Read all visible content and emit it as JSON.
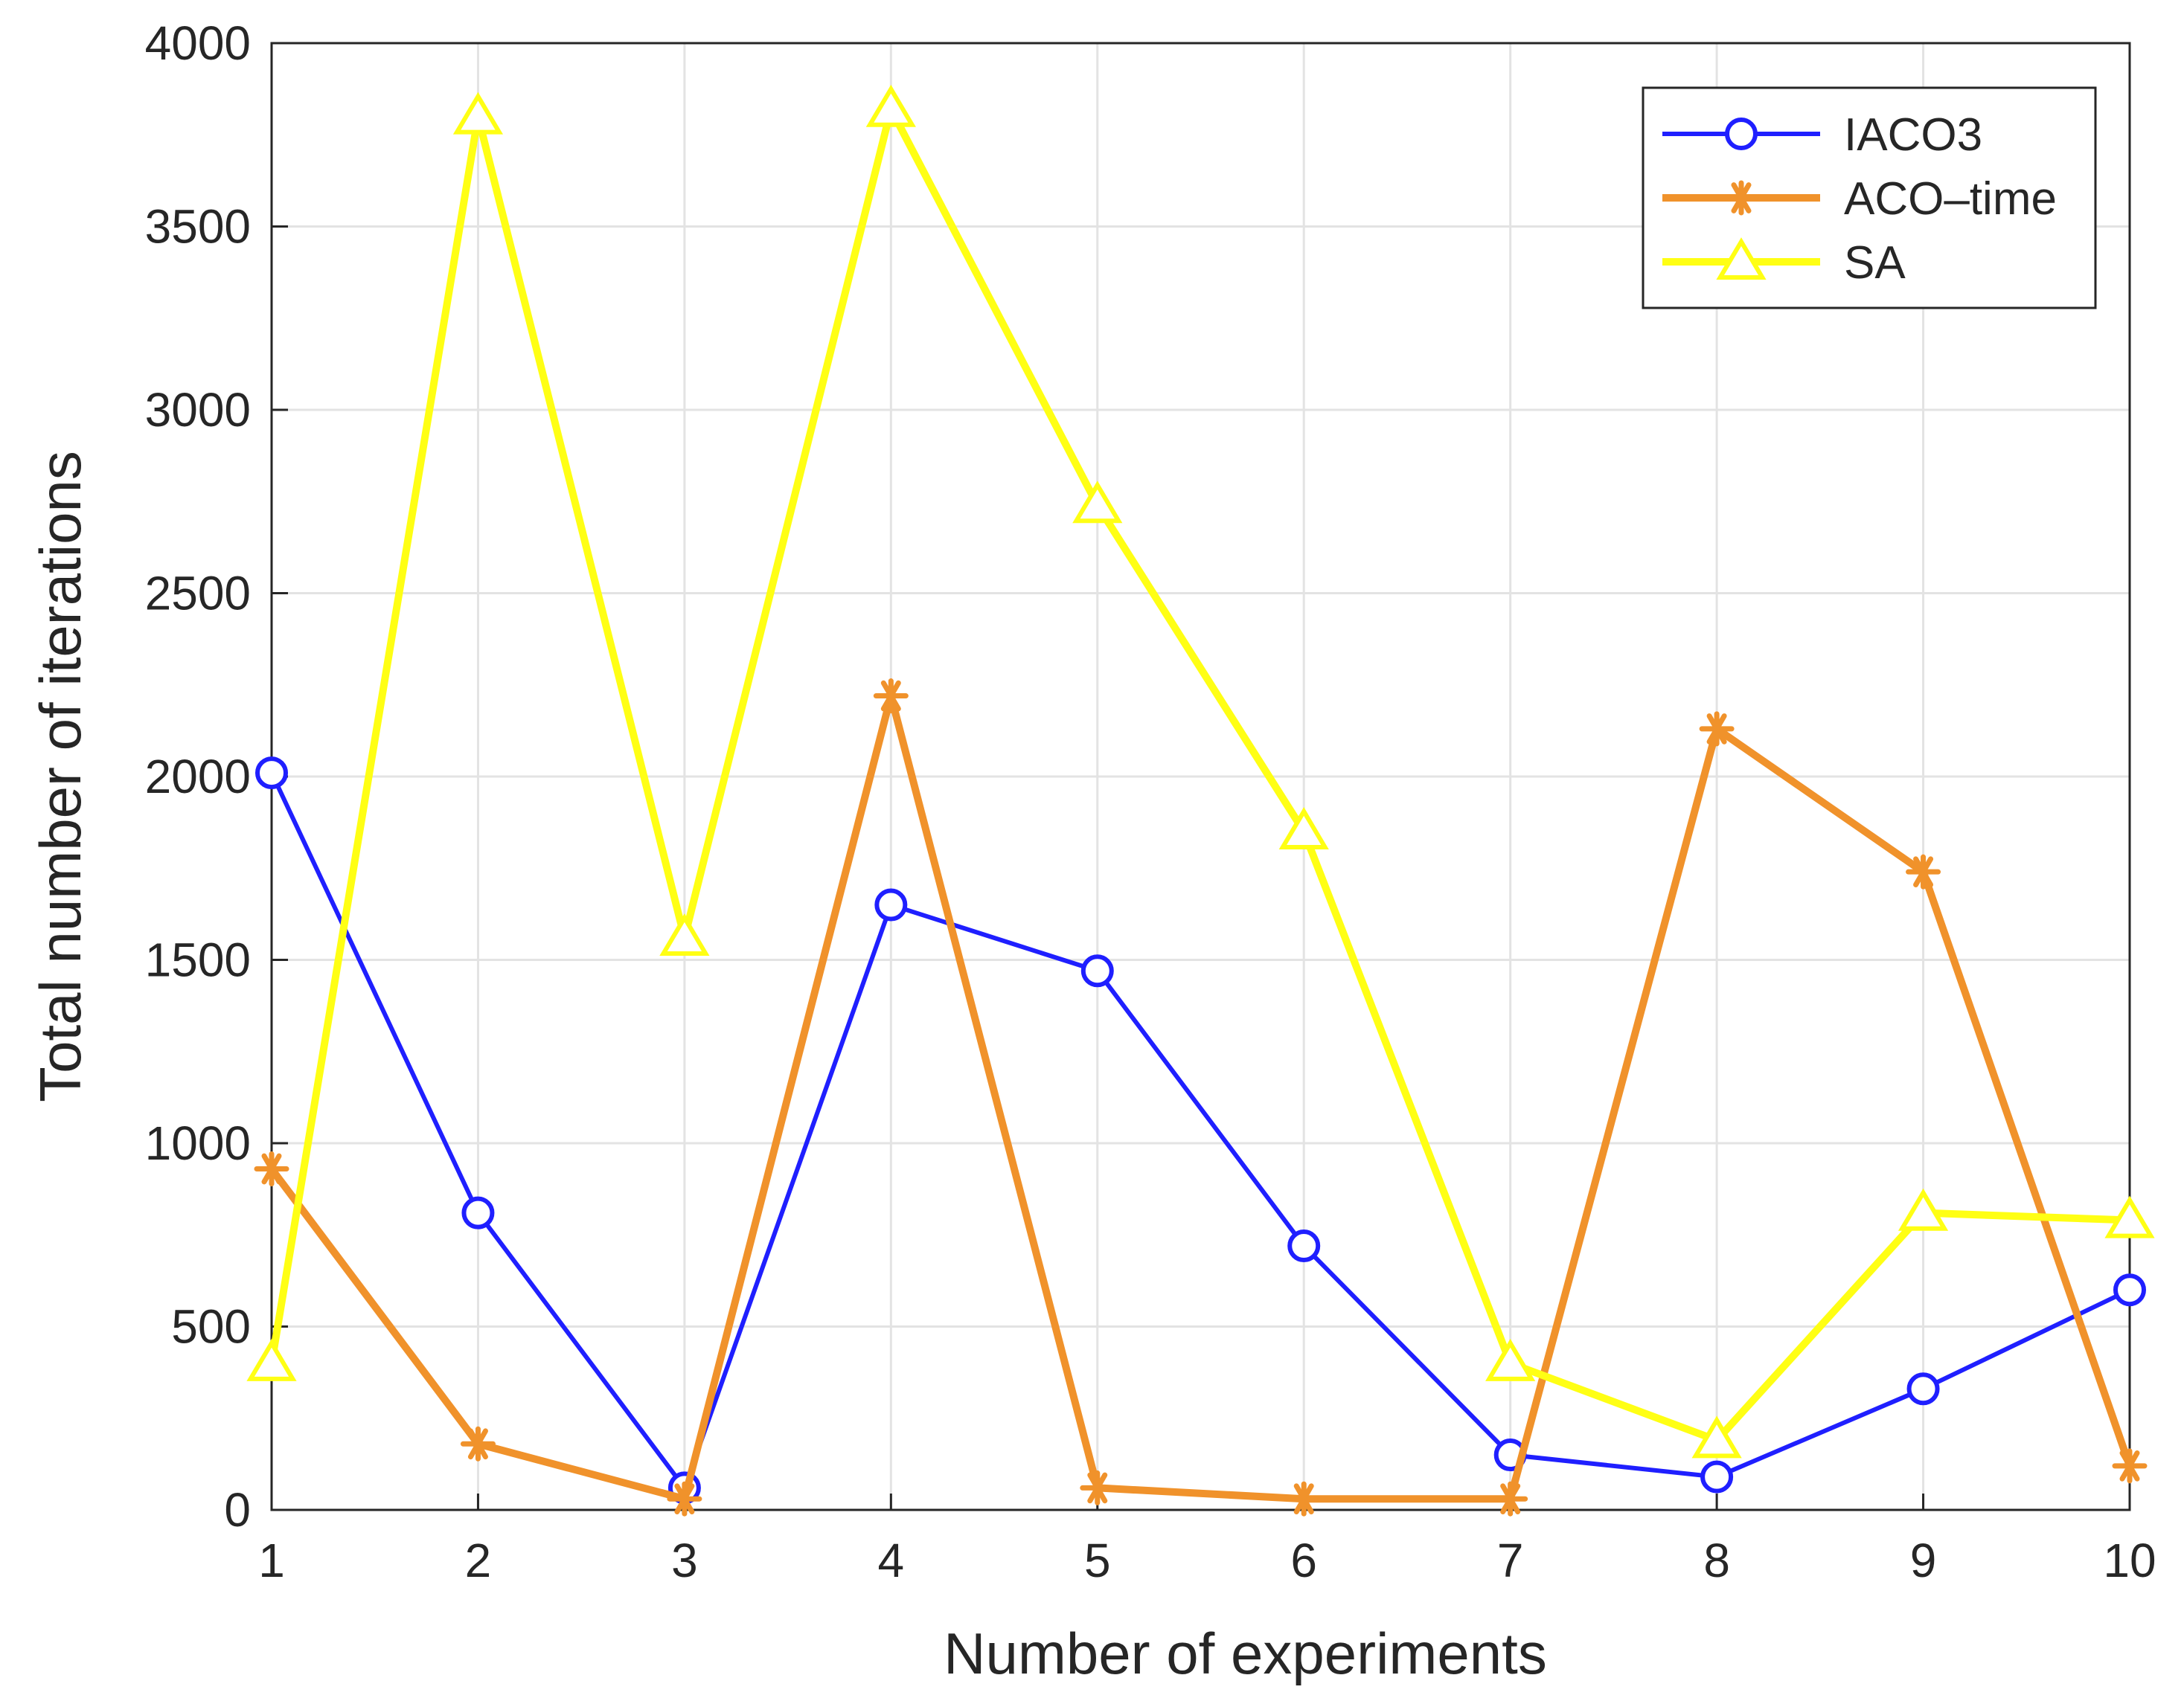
{
  "chart_data": {
    "type": "line",
    "title": "",
    "xlabel": "Number of experiments",
    "ylabel": "Total number of iterations",
    "xlim": [
      1,
      10
    ],
    "ylim": [
      0,
      4000
    ],
    "x": [
      1,
      2,
      3,
      4,
      5,
      6,
      7,
      8,
      9,
      10
    ],
    "xticks": [
      "1",
      "2",
      "3",
      "4",
      "5",
      "6",
      "7",
      "8",
      "9",
      "10"
    ],
    "yticks": [
      "0",
      "500",
      "1000",
      "1500",
      "2000",
      "2500",
      "3000",
      "3500",
      "4000"
    ],
    "ytick_values": [
      0,
      500,
      1000,
      1500,
      2000,
      2500,
      3000,
      3500,
      4000
    ],
    "grid": true,
    "legend_position": "top-right",
    "series": [
      {
        "name": "IACO3",
        "color": "#1f1fff",
        "marker": "circle",
        "values": [
          2010,
          810,
          60,
          1650,
          1470,
          720,
          150,
          90,
          330,
          600
        ]
      },
      {
        "name": "ACO–time",
        "color": "#f0922b",
        "marker": "asterisk",
        "values": [
          930,
          180,
          30,
          2220,
          60,
          30,
          30,
          2130,
          1740,
          120
        ]
      },
      {
        "name": "SA",
        "color": "#ffff14",
        "marker": "triangle",
        "values": [
          400,
          3800,
          1560,
          3820,
          2740,
          1850,
          400,
          190,
          810,
          790
        ]
      }
    ]
  }
}
